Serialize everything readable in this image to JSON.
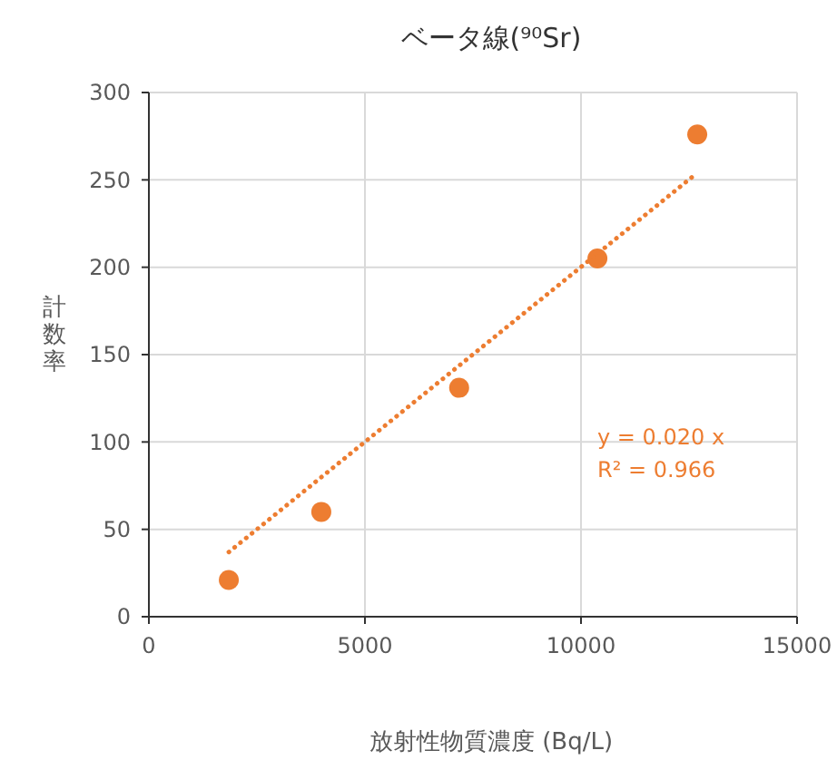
{
  "chart_data": {
    "type": "scatter",
    "title": "ベータ線(⁹⁰Sr)",
    "xlabel": "放射性物質濃度 (Bq/L)",
    "ylabel": "計数率",
    "xlim": [
      0,
      15000
    ],
    "xticks": [
      0,
      5000,
      10000,
      15000
    ],
    "ylim": [
      0,
      300
    ],
    "yticks": [
      0,
      50,
      100,
      150,
      200,
      250,
      300
    ],
    "grid": true,
    "annotations": [
      "y = 0.020 x",
      "R² = 0.966"
    ],
    "series": [
      {
        "color": "#ed7d31",
        "marker": "circle",
        "x": [
          1850,
          3990,
          7180,
          10380,
          12690
        ],
        "values": [
          21,
          60,
          131,
          205,
          276
        ]
      },
      {
        "type": "line",
        "color": "#ed7d31",
        "marker": "none",
        "line_style": "dotted",
        "x": [
          1850,
          12690
        ],
        "values": [
          37,
          254
        ]
      }
    ]
  }
}
